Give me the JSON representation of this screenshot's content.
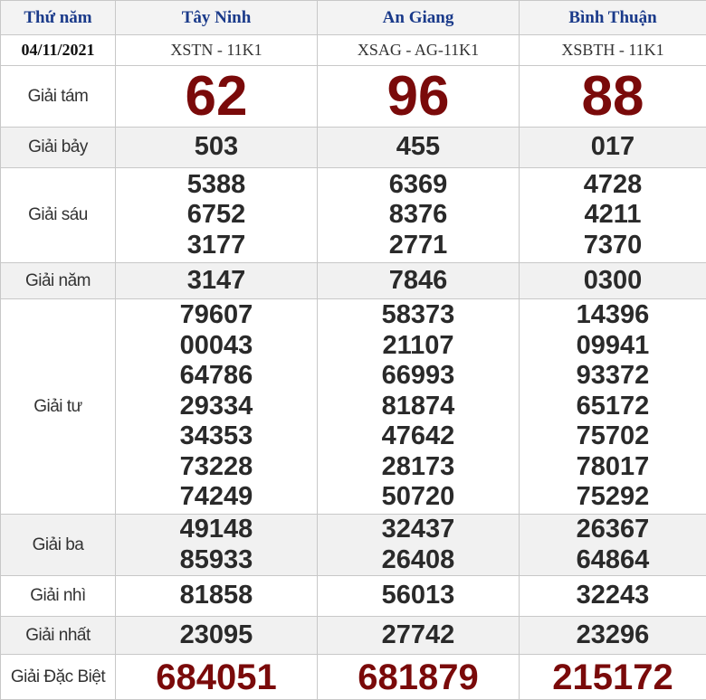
{
  "header": {
    "day": "Thứ năm",
    "provinces": [
      "Tây Ninh",
      "An Giang",
      "Bình Thuận"
    ]
  },
  "date_row": {
    "date": "04/11/2021",
    "codes": [
      "XSTN - 11K1",
      "XSAG - AG-11K1",
      "XSBTH - 11K1"
    ]
  },
  "prizes": [
    {
      "label": "Giải tám",
      "values": [
        [
          "62"
        ],
        [
          "96"
        ],
        [
          "88"
        ]
      ]
    },
    {
      "label": "Giải bảy",
      "values": [
        [
          "503"
        ],
        [
          "455"
        ],
        [
          "017"
        ]
      ]
    },
    {
      "label": "Giải sáu",
      "values": [
        [
          "5388",
          "6752",
          "3177"
        ],
        [
          "6369",
          "8376",
          "2771"
        ],
        [
          "4728",
          "4211",
          "7370"
        ]
      ]
    },
    {
      "label": "Giải năm",
      "values": [
        [
          "3147"
        ],
        [
          "7846"
        ],
        [
          "0300"
        ]
      ]
    },
    {
      "label": "Giải tư",
      "values": [
        [
          "79607",
          "00043",
          "64786",
          "29334",
          "34353",
          "73228",
          "74249"
        ],
        [
          "58373",
          "21107",
          "66993",
          "81874",
          "47642",
          "28173",
          "50720"
        ],
        [
          "14396",
          "09941",
          "93372",
          "65172",
          "75702",
          "78017",
          "75292"
        ]
      ]
    },
    {
      "label": "Giải ba",
      "values": [
        [
          "49148",
          "85933"
        ],
        [
          "32437",
          "26408"
        ],
        [
          "26367",
          "64864"
        ]
      ]
    },
    {
      "label": "Giải nhì",
      "values": [
        [
          "81858"
        ],
        [
          "56013"
        ],
        [
          "32243"
        ]
      ]
    },
    {
      "label": "Giải nhất",
      "values": [
        [
          "23095"
        ],
        [
          "27742"
        ],
        [
          "23296"
        ]
      ]
    },
    {
      "label": "Giải Đặc Biệt",
      "values": [
        [
          "684051"
        ],
        [
          "681879"
        ],
        [
          "215172"
        ]
      ]
    }
  ],
  "colors": {
    "header_text": "#1a3a8a",
    "highlight_number": "#7a0a0a"
  }
}
